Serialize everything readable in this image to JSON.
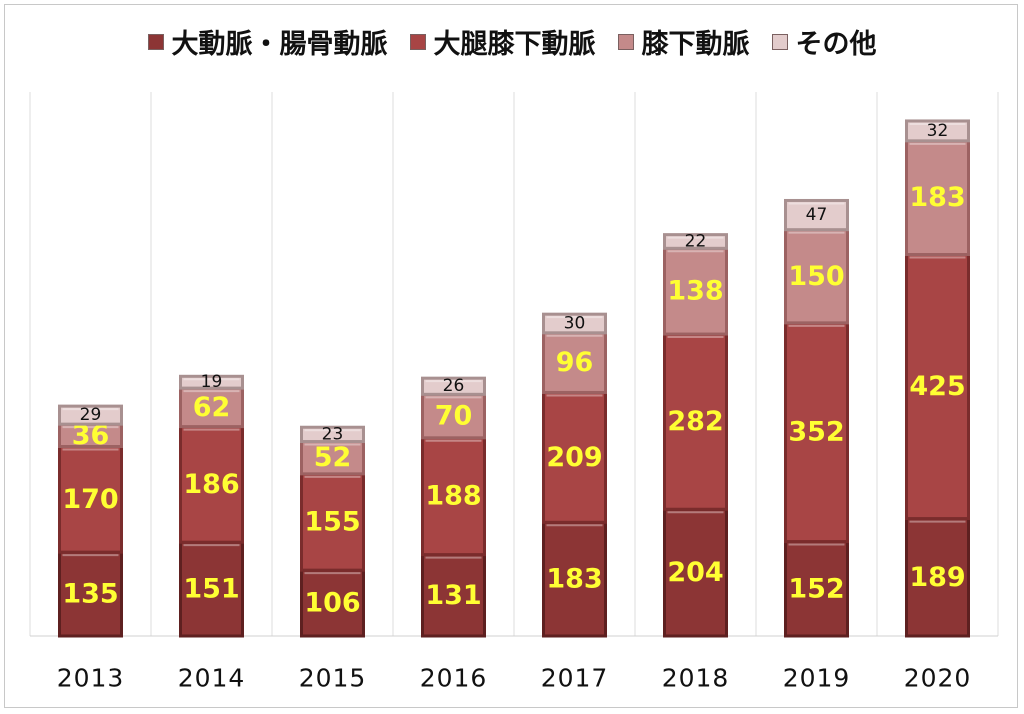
{
  "chart_data": {
    "type": "bar",
    "stacked": true,
    "categories": [
      "2013",
      "2014",
      "2015",
      "2016",
      "2017",
      "2018",
      "2019",
      "2020"
    ],
    "series": [
      {
        "name": "大動脈・腸骨動脈",
        "color": "#8c3535",
        "values": [
          135,
          151,
          106,
          131,
          183,
          204,
          152,
          189
        ]
      },
      {
        "name": "大腿膝下動脈",
        "color": "#a84545",
        "values": [
          170,
          186,
          155,
          188,
          209,
          282,
          352,
          425
        ]
      },
      {
        "name": "膝下動脈",
        "color": "#c48a8a",
        "values": [
          36,
          62,
          52,
          70,
          96,
          138,
          150,
          183
        ]
      },
      {
        "name": "その他",
        "color": "#e3cccc",
        "values": [
          29,
          19,
          23,
          26,
          30,
          22,
          47,
          32
        ]
      }
    ],
    "ylim": [
      0,
      1000
    ],
    "grid": "vertical category separators",
    "legend": "top",
    "title": "",
    "xlabel": "",
    "ylabel": ""
  }
}
